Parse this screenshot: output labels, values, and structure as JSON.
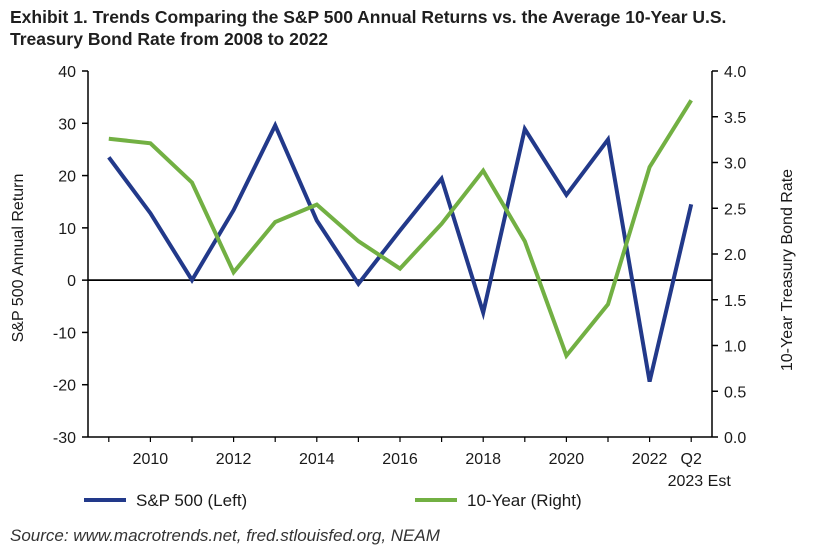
{
  "title_line1": "Exhibit 1. Trends Comparing the S&P 500 Annual Returns vs. the Average 10-Year U.S.",
  "title_line2": "Treasury Bond Rate from 2008 to 2022",
  "source": "Source: www.macrotrends.net, fred.stlouisfed.org, NEAM",
  "colors": {
    "sp500": "#22398a",
    "treasury": "#72b043",
    "axis": "#000000"
  },
  "chart_data": {
    "type": "line",
    "title": "Exhibit 1. Trends Comparing the S&P 500 Annual Returns vs. the Average 10-Year U.S. Treasury Bond Rate from 2008 to 2022",
    "x": [
      2009,
      2010,
      2011,
      2012,
      2013,
      2014,
      2015,
      2016,
      2017,
      2018,
      2019,
      2020,
      2021,
      2022,
      2023
    ],
    "xlim": [
      2008.5,
      2023.5
    ],
    "x_ticks": [
      {
        "x": 2010,
        "label": "2010"
      },
      {
        "x": 2012,
        "label": "2012"
      },
      {
        "x": 2014,
        "label": "2014"
      },
      {
        "x": 2016,
        "label": "2016"
      },
      {
        "x": 2018,
        "label": "2018"
      },
      {
        "x": 2020,
        "label": "2020"
      },
      {
        "x": 2022,
        "label": "2022"
      },
      {
        "x": 2023,
        "label": "Q2"
      }
    ],
    "x_extra_label": "2023 Est",
    "ylabel_left": "S&P 500 Annual Return",
    "ylabel_right": "10-Year Treasury Bond Rate",
    "ylim_left": [
      -30,
      40
    ],
    "yticks_left": [
      -30,
      -20,
      -10,
      0,
      10,
      20,
      30,
      40
    ],
    "ylim_right": [
      0.0,
      4.0
    ],
    "yticks_right": [
      "0.0",
      "0.5",
      "1.0",
      "1.5",
      "2.0",
      "2.5",
      "3.0",
      "3.5",
      "4.0"
    ],
    "zero_line": 0,
    "series": [
      {
        "name": "S&P 500 (Left)",
        "axis": "left",
        "values": [
          23.5,
          12.8,
          0.0,
          13.4,
          29.6,
          11.4,
          -0.7,
          9.5,
          19.4,
          -6.2,
          28.9,
          16.3,
          26.9,
          -19.4,
          14.5
        ]
      },
      {
        "name": "10-Year (Right)",
        "axis": "right",
        "values": [
          3.26,
          3.21,
          2.78,
          1.8,
          2.35,
          2.54,
          2.14,
          1.84,
          2.33,
          2.91,
          2.14,
          0.89,
          1.45,
          2.95,
          3.68
        ]
      }
    ],
    "legend": [
      "S&P 500 (Left)",
      "10-Year (Right)"
    ],
    "legend_position": "bottom"
  }
}
